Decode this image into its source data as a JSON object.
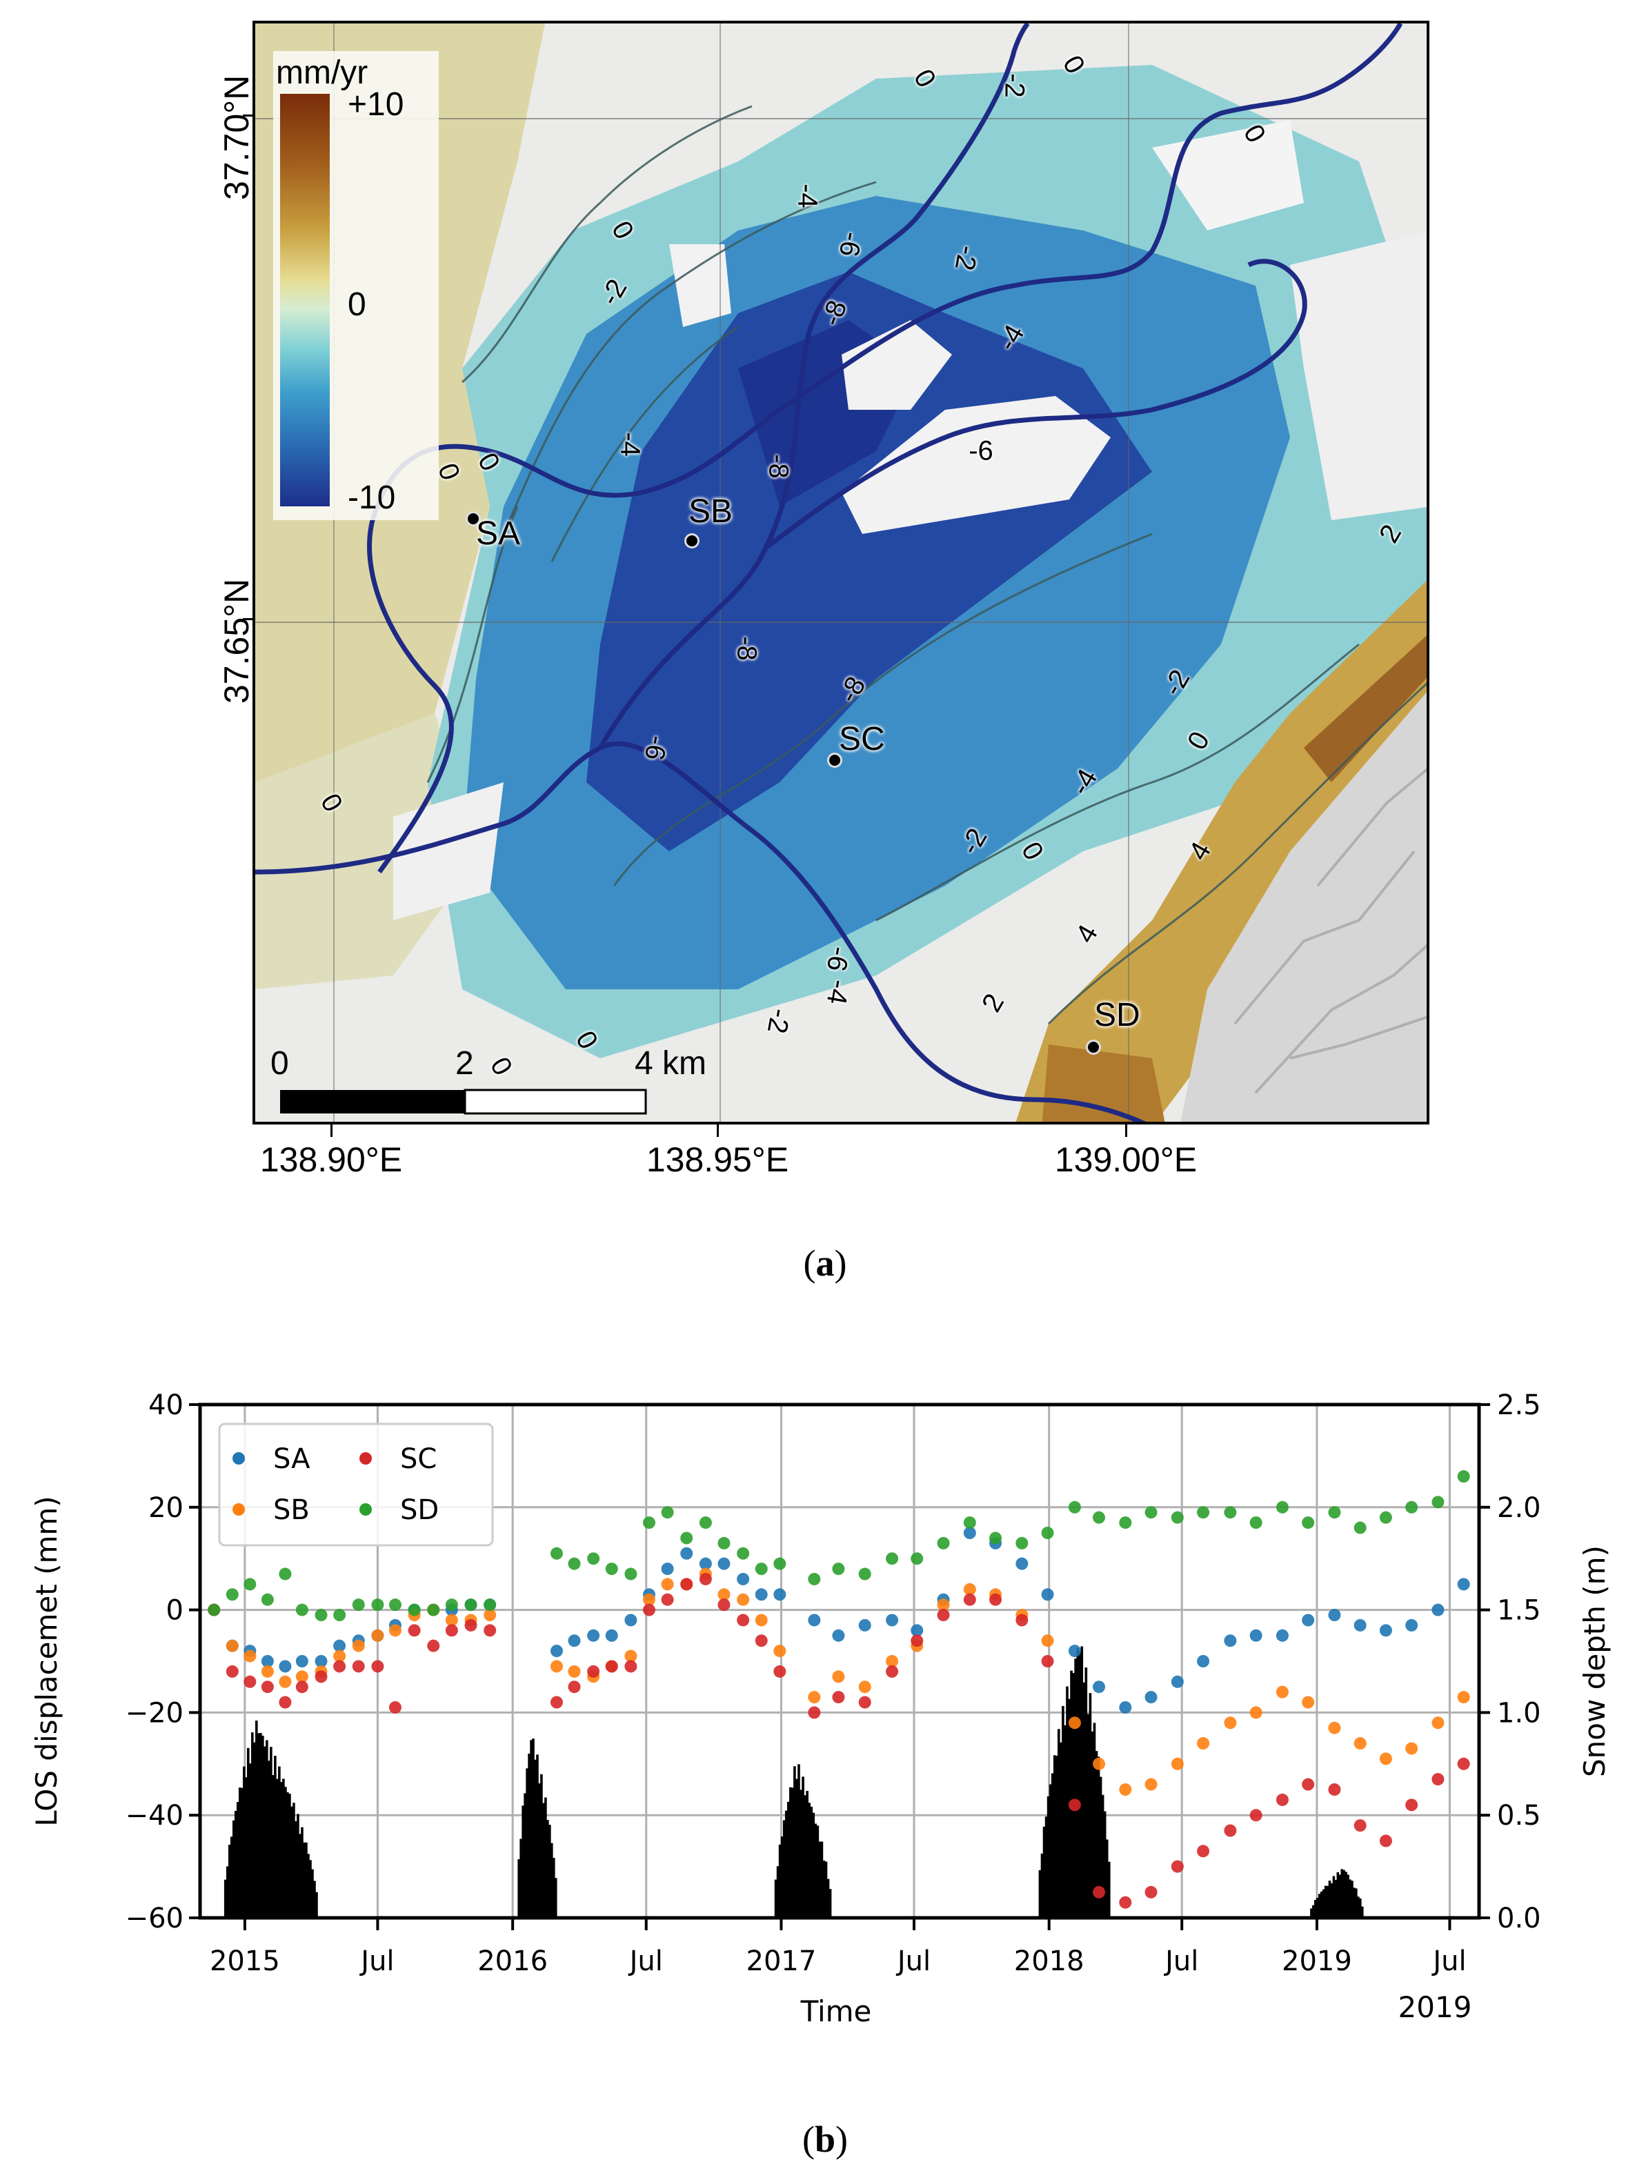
{
  "panel_a": {
    "caption": "a",
    "colorbar": {
      "title": "mm/yr",
      "max_label": "+10",
      "mid_label": "0",
      "min_label": "-10",
      "colors": [
        "#7b2d0a",
        "#c9a040",
        "#e6dc93",
        "#7fd0d6",
        "#2a6cb4",
        "#1d2f8c"
      ]
    },
    "lat_labels": [
      "37.70°N",
      "37.65°N"
    ],
    "lon_labels": [
      "138.90°E",
      "138.95°E",
      "139.00°E"
    ],
    "stations": [
      {
        "name": "SA"
      },
      {
        "name": "SB"
      },
      {
        "name": "SC"
      },
      {
        "name": "SD"
      }
    ],
    "scale_bar": {
      "labels": [
        "0",
        "2",
        "4 km"
      ]
    },
    "contour_labels": [
      "0",
      "-2",
      "-4",
      "-6",
      "-8",
      "-8",
      "-6",
      "-4",
      "-2",
      "0",
      "2",
      "4",
      "0",
      "-2",
      "-4",
      "-6",
      "-8",
      "-8",
      "-6",
      "-4",
      "-2",
      "0",
      "0",
      "0",
      "2",
      "4",
      "-2",
      "0",
      "2",
      "0",
      "0",
      "-2"
    ]
  },
  "panel_b": {
    "caption": "b",
    "legend": [
      {
        "name": "SA",
        "color": "#1f77b4"
      },
      {
        "name": "SB",
        "color": "#ff7f0e"
      },
      {
        "name": "SC",
        "color": "#d62728"
      },
      {
        "name": "SD",
        "color": "#2ca02c"
      }
    ],
    "xlabel": "Time",
    "ylabel_left": "LOS displacemet (mm)",
    "ylabel_right": "Snow depth (m)",
    "x_ticks": [
      "2015",
      "Jul",
      "2016",
      "Jul",
      "2017",
      "Jul",
      "2018",
      "Jul",
      "2019",
      "Jul"
    ],
    "x_offset_label": "2019",
    "y_left_ticks": [
      "40",
      "20",
      "0",
      "−20",
      "−40",
      "−60"
    ],
    "y_right_ticks": [
      "2.5",
      "2.0",
      "1.5",
      "1.0",
      "0.5",
      "0.0"
    ]
  },
  "chart_data": {
    "type": "scatter",
    "title": "",
    "xlabel": "Time",
    "ylabel": "LOS displacemet (mm)",
    "y2label": "Snow depth (m)",
    "ylim": [
      -60,
      40
    ],
    "y2lim": [
      0.0,
      2.5
    ],
    "xlim": [
      "2014-11",
      "2019-08"
    ],
    "grid": true,
    "legend_position": "upper left",
    "x": [
      "2014-11-20",
      "2014-12-15",
      "2015-01-08",
      "2015-02-01",
      "2015-02-25",
      "2015-03-20",
      "2015-04-15",
      "2015-05-10",
      "2015-06-05",
      "2015-07-01",
      "2015-07-25",
      "2015-08-20",
      "2015-09-15",
      "2015-10-10",
      "2015-11-05",
      "2015-12-01",
      "2016-03-01",
      "2016-03-25",
      "2016-04-20",
      "2016-05-15",
      "2016-06-10",
      "2016-07-05",
      "2016-07-30",
      "2016-08-25",
      "2016-09-20",
      "2016-10-15",
      "2016-11-10",
      "2016-12-05",
      "2016-12-30",
      "2017-02-15",
      "2017-03-20",
      "2017-04-25",
      "2017-06-01",
      "2017-07-05",
      "2017-08-10",
      "2017-09-15",
      "2017-10-20",
      "2017-11-25",
      "2017-12-30",
      "2018-02-05",
      "2018-03-10",
      "2018-04-15",
      "2018-05-20",
      "2018-06-25",
      "2018-07-30",
      "2018-09-05",
      "2018-10-10",
      "2018-11-15",
      "2018-12-20",
      "2019-01-25",
      "2019-03-01",
      "2019-04-05",
      "2019-05-10",
      "2019-06-15",
      "2019-07-20"
    ],
    "series": [
      {
        "name": "SA",
        "color": "#1f77b4",
        "values": [
          0,
          -7,
          -8,
          -10,
          -11,
          -10,
          -10,
          -7,
          -6,
          -5,
          -3,
          0,
          0,
          0,
          1,
          1,
          -8,
          -6,
          -5,
          -5,
          -2,
          3,
          8,
          11,
          9,
          9,
          6,
          3,
          3,
          -2,
          -5,
          -3,
          -2,
          -4,
          2,
          15,
          13,
          9,
          3,
          -8,
          -15,
          -19,
          -17,
          -14,
          -10,
          -6,
          -5,
          -5,
          -2,
          -1,
          -3,
          -4,
          -3,
          0,
          5
        ]
      },
      {
        "name": "SB",
        "color": "#ff7f0e",
        "values": [
          0,
          -7,
          -9,
          -12,
          -14,
          -13,
          -12,
          -9,
          -7,
          -5,
          -4,
          -1,
          0,
          -2,
          -2,
          -1,
          -11,
          -12,
          -13,
          -11,
          -9,
          2,
          5,
          5,
          7,
          3,
          2,
          -2,
          -8,
          -17,
          -13,
          -15,
          -10,
          -7,
          1,
          4,
          3,
          -1,
          -6,
          -22,
          -30,
          -35,
          -34,
          -30,
          -26,
          -22,
          -20,
          -16,
          -18,
          -23,
          -26,
          -29,
          -27,
          -22,
          -17
        ]
      },
      {
        "name": "SC",
        "color": "#d62728",
        "values": [
          0,
          -12,
          -14,
          -15,
          -18,
          -15,
          -13,
          -11,
          -11,
          -11,
          -19,
          -4,
          -7,
          -4,
          -3,
          -4,
          -18,
          -15,
          -12,
          -11,
          -11,
          0,
          2,
          5,
          6,
          1,
          -2,
          -6,
          -12,
          -20,
          -17,
          -18,
          -12,
          -6,
          -1,
          2,
          2,
          -2,
          -10,
          -38,
          -55,
          -57,
          -55,
          -50,
          -47,
          -43,
          -40,
          -37,
          -34,
          -35,
          -42,
          -45,
          -38,
          -33,
          -30
        ]
      },
      {
        "name": "SD",
        "color": "#2ca02c",
        "values": [
          0,
          3,
          5,
          2,
          7,
          0,
          -1,
          -1,
          1,
          1,
          1,
          0,
          0,
          1,
          1,
          1,
          11,
          9,
          10,
          8,
          7,
          17,
          19,
          14,
          17,
          13,
          11,
          8,
          9,
          6,
          8,
          7,
          10,
          10,
          13,
          17,
          14,
          13,
          15,
          20,
          18,
          17,
          19,
          18,
          19,
          19,
          17,
          20,
          17,
          19,
          16,
          18,
          20,
          21,
          26
        ]
      }
    ],
    "snow_depth": {
      "name": "Snow depth",
      "type": "bar",
      "axis": "right",
      "color": "#000000",
      "peaks": [
        {
          "season": "2014-15",
          "start": "2014-12-01",
          "peak_date": "2015-01-15",
          "end": "2015-04-10",
          "peak_m": 0.98
        },
        {
          "season": "2015-16",
          "start": "2016-01-05",
          "peak_date": "2016-01-25",
          "end": "2016-03-01",
          "peak_m": 0.93
        },
        {
          "season": "2016-17",
          "start": "2016-12-20",
          "peak_date": "2017-01-20",
          "end": "2017-03-10",
          "peak_m": 0.78
        },
        {
          "season": "2017-18",
          "start": "2017-12-15",
          "peak_date": "2018-02-10",
          "end": "2018-03-25",
          "peak_m": 1.4
        },
        {
          "season": "2018-19",
          "start": "2018-12-20",
          "peak_date": "2019-02-05",
          "end": "2019-03-05",
          "peak_m": 0.25
        }
      ]
    }
  }
}
